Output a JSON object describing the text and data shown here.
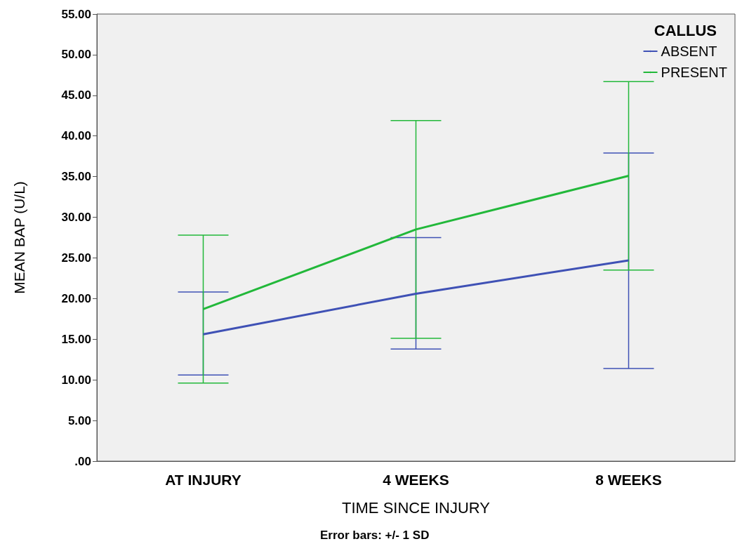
{
  "chart_data": {
    "type": "line",
    "xlabel": "TIME SINCE INJURY",
    "ylabel": "MEAN BAP (U/L)",
    "legend_title": "CALLUS",
    "legend": "top right",
    "grid": false,
    "marker": "none",
    "categories": [
      "AT INJURY",
      "4 WEEKS",
      "8 WEEKS"
    ],
    "ylim": [
      0,
      55
    ],
    "yticks": [
      {
        "value": 0,
        "label": ".00"
      },
      {
        "value": 5,
        "label": "5.00"
      },
      {
        "value": 10,
        "label": "10.00"
      },
      {
        "value": 15,
        "label": "15.00"
      },
      {
        "value": 20,
        "label": "20.00"
      },
      {
        "value": 25,
        "label": "25.00"
      },
      {
        "value": 30,
        "label": "30.00"
      },
      {
        "value": 35,
        "label": "35.00"
      },
      {
        "value": 40,
        "label": "40.00"
      },
      {
        "value": 45,
        "label": "45.00"
      },
      {
        "value": 50,
        "label": "50.00"
      },
      {
        "value": 55,
        "label": "55.00"
      }
    ],
    "series": [
      {
        "name": "ABSENT",
        "color": "#3f51b5",
        "values": [
          15.6,
          20.6,
          24.7
        ],
        "errors": [
          [
            10.6,
            20.8
          ],
          [
            13.8,
            27.5
          ],
          [
            11.4,
            37.9
          ]
        ]
      },
      {
        "name": "PRESENT",
        "color": "#22b83a",
        "values": [
          18.7,
          28.5,
          35.1
        ],
        "errors": [
          [
            9.6,
            27.8
          ],
          [
            15.1,
            41.9
          ],
          [
            23.5,
            46.7
          ]
        ]
      }
    ],
    "annotations": [
      "Error bars: +/- 1 SD"
    ]
  }
}
